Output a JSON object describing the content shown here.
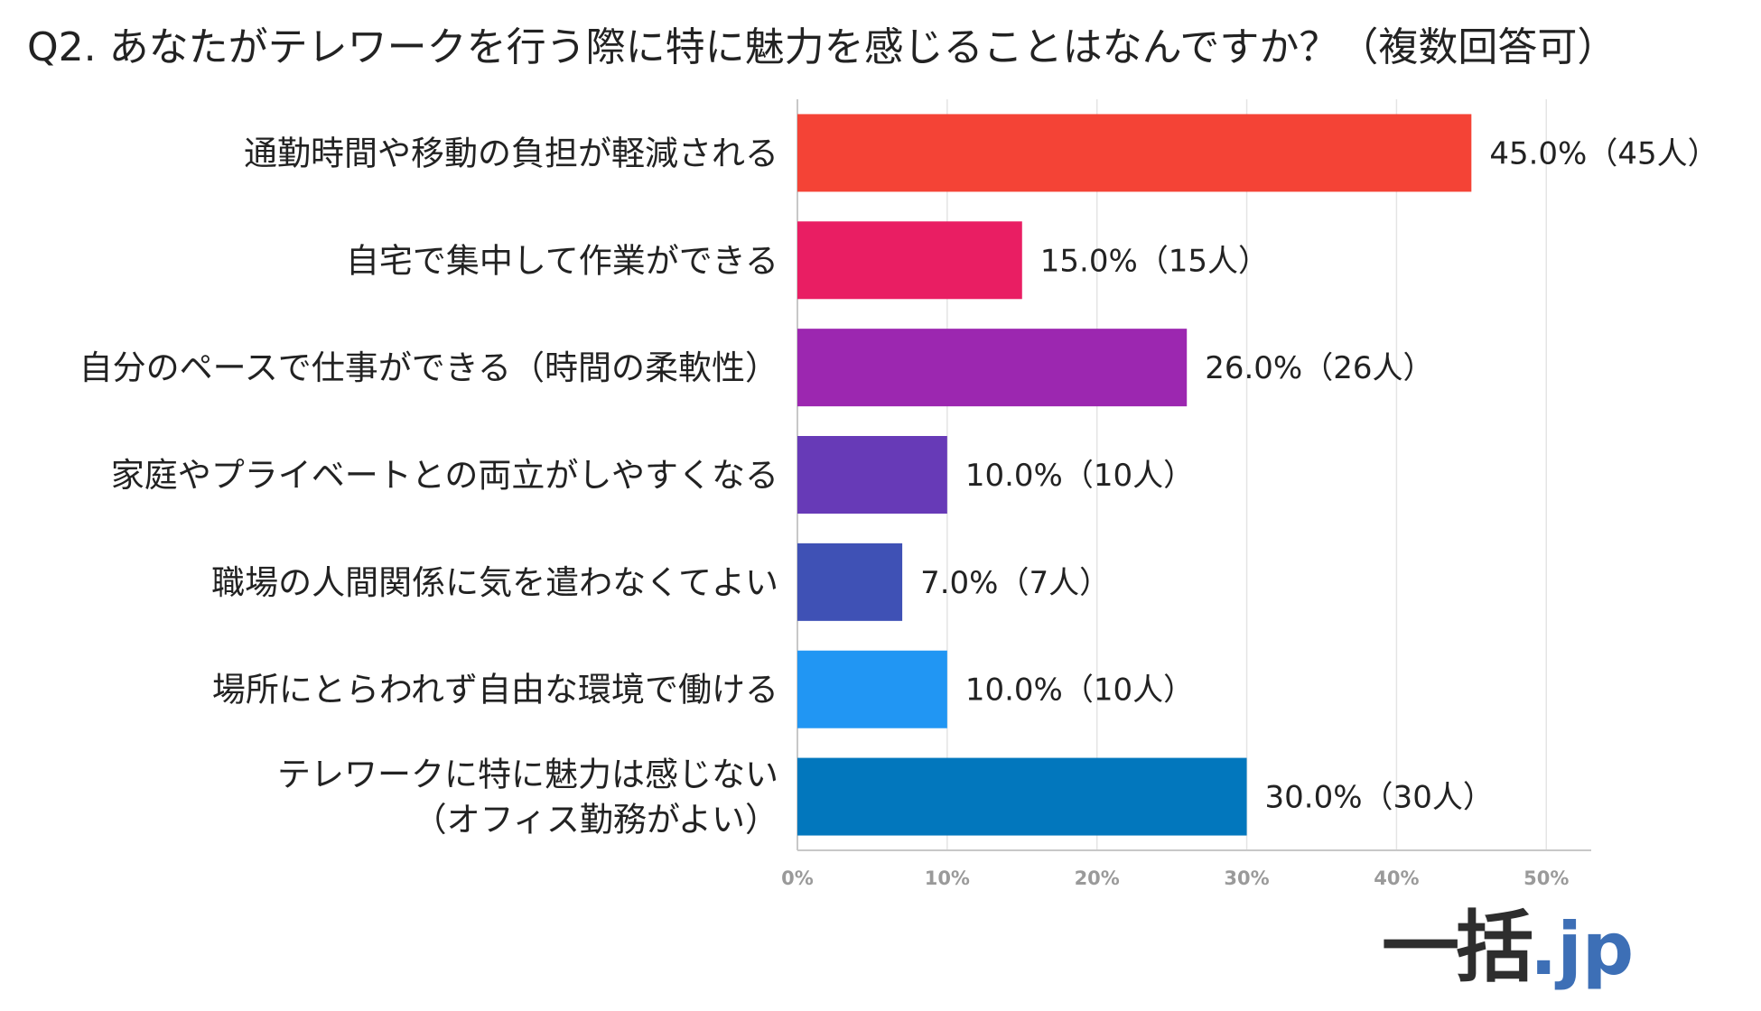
{
  "chart_data": {
    "type": "bar",
    "orientation": "horizontal",
    "title": "Q2. あなたがテレワークを行う際に特に魅力を感じることはなんですか？（複数回答可）",
    "categories": [
      [
        "通勤時間や移動の負担が軽減される"
      ],
      [
        "自宅で集中して作業ができる"
      ],
      [
        "自分のペースで仕事ができる（時間の柔軟性）"
      ],
      [
        "家庭やプライベートとの両立がしやすくなる"
      ],
      [
        "職場の人間関係に気を遣わなくてよい"
      ],
      [
        "場所にとらわれず自由な環境で働ける"
      ],
      [
        "テレワークに特に魅力は感じない",
        "（オフィス勤務がよい）"
      ]
    ],
    "values": [
      45.0,
      15.0,
      26.0,
      10.0,
      7.0,
      10.0,
      30.0
    ],
    "data_labels": [
      "45.0%（45人）",
      "15.0%（15人）",
      "26.0%（26人）",
      "10.0%（10人）",
      "7.0%（7人）",
      "10.0%（10人）",
      "30.0%（30人）"
    ],
    "colors": [
      "#f44336",
      "#e91e63",
      "#9c27b0",
      "#673ab7",
      "#3f51b5",
      "#2196f3",
      "#0277bd"
    ],
    "xlim": [
      0,
      53
    ],
    "xticks": [
      0,
      10,
      20,
      30,
      40,
      50
    ],
    "xtick_labels": [
      "0%",
      "10%",
      "20%",
      "30%",
      "40%",
      "50%"
    ],
    "xlabel": "",
    "ylabel": "",
    "grid": true,
    "gridline_color": "#e4e4e4",
    "axis_color": "#c8c8c8"
  },
  "logo": {
    "kanji": "一括",
    "suffix": ".jp",
    "kanji_color": "#2e2e2e",
    "suffix_color": "#3d6fb6"
  }
}
